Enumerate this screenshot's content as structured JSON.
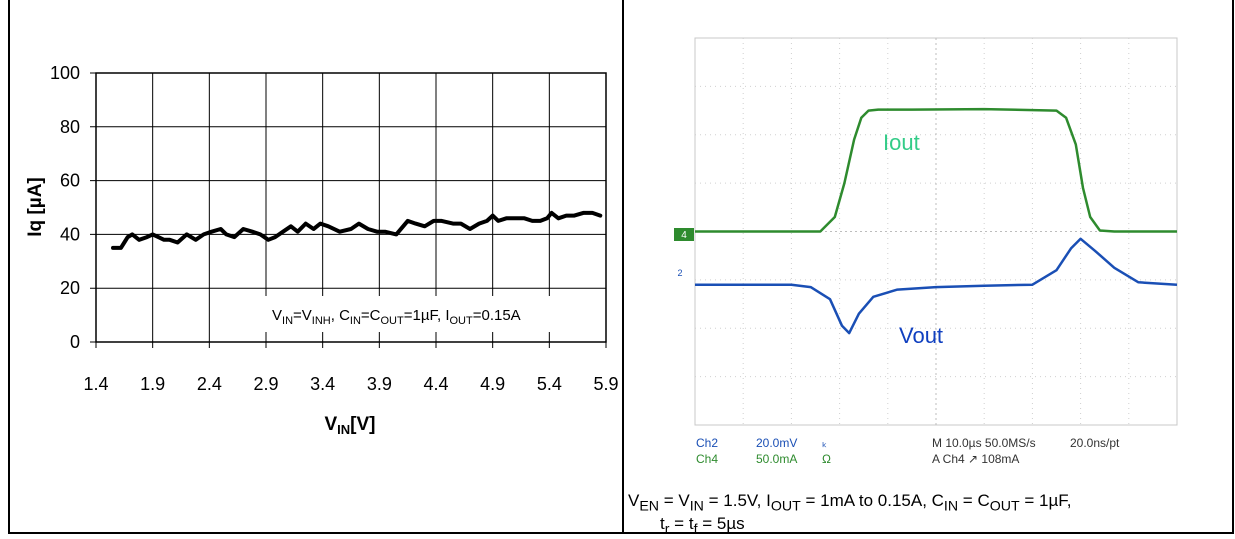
{
  "chart_data": [
    {
      "type": "line",
      "title": "",
      "xlabel": "V_IN[V]",
      "xlabel_main": "V",
      "xlabel_sub": "IN",
      "xlabel_tail": "[V]",
      "ylabel": "Iq [µA]",
      "xlim": [
        1.4,
        5.9
      ],
      "ylim": [
        0,
        100
      ],
      "x_ticks": [
        "1.4",
        "1.9",
        "2.4",
        "2.9",
        "3.4",
        "3.9",
        "4.4",
        "4.9",
        "5.4",
        "5.9"
      ],
      "y_ticks": [
        "0",
        "20",
        "40",
        "60",
        "80",
        "100"
      ],
      "grid": true,
      "annotation": "V_IN=V_INH, C_IN=C_OUT=1µF, I_OUT=0.15A",
      "annotation_parts": {
        "a": "V",
        "a_sub": "IN",
        "b": "=V",
        "b_sub": "INH",
        "c": ", C",
        "c_sub": "IN",
        "d": "=C",
        "d_sub": "OUT",
        "e": "=1µF, I",
        "e_sub": "OUT",
        "f": "=0.15A"
      },
      "series": [
        {
          "color": "#000000",
          "x": [
            1.55,
            1.62,
            1.65,
            1.68,
            1.72,
            1.78,
            1.85,
            1.9,
            1.95,
            2.0,
            2.05,
            2.12,
            2.2,
            2.28,
            2.35,
            2.42,
            2.5,
            2.55,
            2.62,
            2.7,
            2.78,
            2.85,
            2.92,
            2.98,
            3.05,
            3.12,
            3.18,
            3.25,
            3.32,
            3.38,
            3.45,
            3.55,
            3.65,
            3.72,
            3.8,
            3.88,
            3.95,
            4.05,
            4.15,
            4.22,
            4.3,
            4.38,
            4.45,
            4.55,
            4.62,
            4.7,
            4.78,
            4.85,
            4.9,
            4.95,
            5.02,
            5.1,
            5.18,
            5.25,
            5.32,
            5.38,
            5.42,
            5.48,
            5.55,
            5.62,
            5.7,
            5.78,
            5.85
          ],
          "values": [
            35,
            35,
            37,
            39,
            40,
            38,
            39,
            40,
            39,
            38,
            38,
            37,
            40,
            38,
            40,
            41,
            42,
            40,
            39,
            42,
            41,
            40,
            38,
            39,
            41,
            43,
            41,
            44,
            42,
            44,
            43,
            41,
            42,
            44,
            42,
            41,
            41,
            40,
            45,
            44,
            43,
            45,
            45,
            44,
            44,
            42,
            44,
            45,
            47,
            45,
            46,
            46,
            46,
            45,
            45,
            46,
            48,
            46,
            47,
            47,
            48,
            48,
            47
          ]
        }
      ]
    },
    {
      "type": "line",
      "title": "",
      "grid": true,
      "ylim": [
        -4,
        4
      ],
      "xlim": [
        -5,
        5
      ],
      "series": [
        {
          "name": "Iout",
          "color": "#2e8b2e",
          "label_color": "#33cc88",
          "x": [
            -5,
            -2.4,
            -2.1,
            -1.9,
            -1.7,
            -1.55,
            -1.4,
            -1.2,
            -0.5,
            1.0,
            2.5,
            2.7,
            2.9,
            3.05,
            3.2,
            3.4,
            3.7,
            5
          ],
          "values": [
            0.0,
            0.0,
            0.3,
            1.0,
            1.9,
            2.35,
            2.5,
            2.52,
            2.52,
            2.53,
            2.5,
            2.35,
            1.8,
            0.9,
            0.3,
            0.02,
            0.0,
            0.0
          ]
        },
        {
          "name": "Vout",
          "color": "#1a4fb5",
          "label_color": "#1040c0",
          "x": [
            -5,
            -3.0,
            -2.6,
            -2.2,
            -1.95,
            -1.8,
            -1.6,
            -1.3,
            -0.8,
            0.0,
            1.0,
            2.0,
            2.5,
            2.8,
            3.0,
            3.3,
            3.7,
            4.2,
            5
          ],
          "values": [
            -1.1,
            -1.1,
            -1.15,
            -1.4,
            -1.95,
            -2.1,
            -1.7,
            -1.35,
            -1.2,
            -1.15,
            -1.12,
            -1.1,
            -0.8,
            -0.35,
            -0.15,
            -0.4,
            -0.75,
            -1.05,
            -1.1
          ]
        }
      ],
      "markers": {
        "ch4": "4",
        "ch2": "2"
      },
      "readout": {
        "r1c1": "Ch2",
        "r1c2": "20.0mV",
        "r1c3": "ₖ",
        "r1c4": "M 10.0µs 50.0MS/s",
        "r1c5": "20.0ns/pt",
        "r2c1": "Ch4",
        "r2c2": "50.0mA",
        "r2c3": "Ω",
        "r2c4": "A  Ch4  ↗  108mA"
      }
    }
  ],
  "caption": {
    "p1": "V",
    "p1_sub": "EN",
    "p2": " = V",
    "p2_sub": "IN",
    "p3": " = 1.5V, I",
    "p3_sub": "OUT",
    "p4": " = 1mA to 0.15A, C",
    "p4_sub": "IN",
    "p5": " = C",
    "p5_sub": "OUT",
    "p6": " = 1µF,",
    "q1": "t",
    "q1_sub": "r",
    "q2": " = t",
    "q2_sub": "f",
    "q3": " = 5µs"
  }
}
